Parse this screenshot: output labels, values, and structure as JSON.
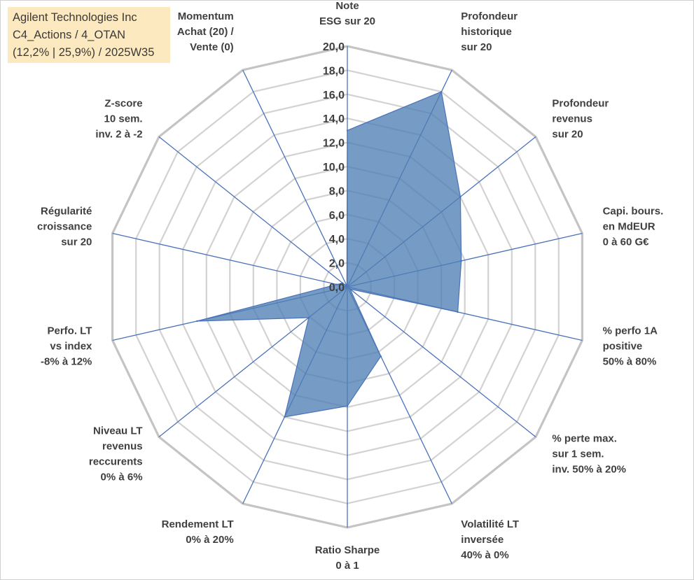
{
  "title_lines": [
    "Agilent Technologies Inc",
    "C4_Actions / 4_OTAN",
    "(12,2% | 25,9%) / 2025W35"
  ],
  "chart_data": {
    "type": "radar",
    "axes": [
      [
        "Note",
        "ESG sur 20"
      ],
      [
        "Profondeur",
        "historique",
        "sur 20"
      ],
      [
        "Profondeur",
        "revenus",
        "sur 20"
      ],
      [
        "Capi. bours.",
        "en MdEUR",
        "0 à 60 G€"
      ],
      [
        "% perfo 1A",
        "positive",
        "50% à 80%"
      ],
      [
        "% perte max.",
        "sur 1 sem.",
        "inv. 50% à 20%"
      ],
      [
        "Volatilité LT",
        "inversée",
        "40% à 0%"
      ],
      [
        "Ratio Sharpe",
        "0 à 1"
      ],
      [
        "Rendement LT",
        "0% à 20%"
      ],
      [
        "Niveau LT",
        "revenus",
        "reccurents",
        "0% à 6%"
      ],
      [
        "Perfo. LT",
        "vs index",
        "-8% à 12%"
      ],
      [
        "Régularité",
        "croissance",
        "sur 20"
      ],
      [
        "Z-score",
        "10 sem.",
        "inv. 2 à -2"
      ],
      [
        "Momentum",
        "Achat (20) /",
        "Vente (0)"
      ]
    ],
    "ticks": [
      "0,0",
      "2,0",
      "4,0",
      "6,0",
      "8,0",
      "10,0",
      "12,0",
      "14,0",
      "16,0",
      "18,0",
      "20,0"
    ],
    "rmin": 0,
    "rmax": 20,
    "grid": true,
    "series": [
      {
        "values": [
          13.0,
          18.0,
          12.0,
          9.7,
          9.4,
          0.3,
          6.4,
          9.9,
          12.0,
          4.1,
          12.8,
          0.9,
          0.5,
          0.1
        ],
        "color": "#4f7fb5"
      }
    ]
  }
}
